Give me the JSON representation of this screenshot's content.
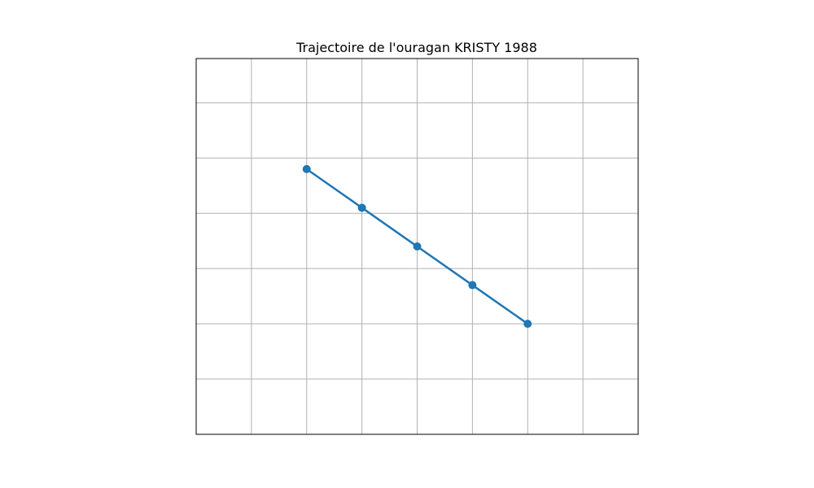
{
  "chart_data": {
    "type": "line",
    "title": "Trajectoire de l'ouragan KRISTY 1988",
    "xlabel": "",
    "ylabel": "",
    "xlim": [
      0,
      8
    ],
    "ylim": [
      0,
      6.8
    ],
    "grid": true,
    "color": "#1f77b4",
    "series": [
      {
        "x": [
          2,
          3,
          4,
          5,
          6
        ],
        "y": [
          4.8,
          4.1,
          3.4,
          2.7,
          2.0
        ]
      }
    ]
  }
}
